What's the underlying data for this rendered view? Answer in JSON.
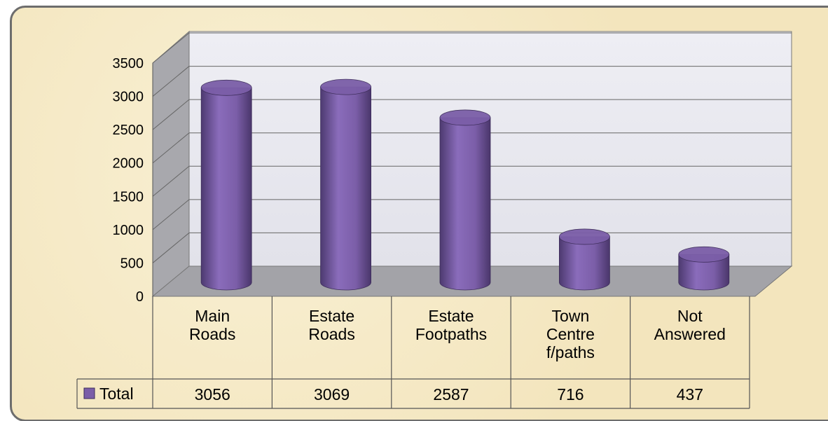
{
  "chart_data": {
    "type": "bar",
    "categories": [
      "Main Roads",
      "Estate Roads",
      "Estate Footpaths",
      "Town Centre f/paths",
      "Not Answered"
    ],
    "series": [
      {
        "name": "Total",
        "color": "#7b5ea8",
        "values": [
          3056,
          3069,
          2587,
          716,
          437
        ]
      }
    ],
    "ylim": [
      0,
      3500
    ],
    "yticks": [
      0,
      500,
      1000,
      1500,
      2000,
      2500,
      3000,
      3500
    ],
    "grid": true
  }
}
